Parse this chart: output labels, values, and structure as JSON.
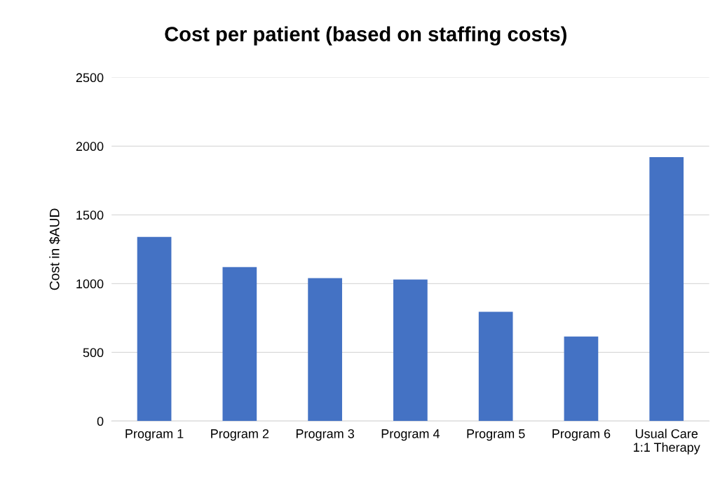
{
  "chart_data": {
    "type": "bar",
    "title": "Cost per patient (based on staffing costs)",
    "ylabel": "Cost in $AUD",
    "categories": [
      "Program 1",
      "Program 2",
      "Program 3",
      "Program 4",
      "Program 5",
      "Program 6",
      "Usual Care\n1:1 Therapy"
    ],
    "values": [
      1340,
      1120,
      1040,
      1030,
      795,
      615,
      1920
    ],
    "color": "#4472c4",
    "ylim": [
      0,
      2500
    ],
    "yticks": [
      0,
      500,
      1000,
      1500,
      2000,
      2500
    ],
    "grid": "y",
    "legend": false
  }
}
